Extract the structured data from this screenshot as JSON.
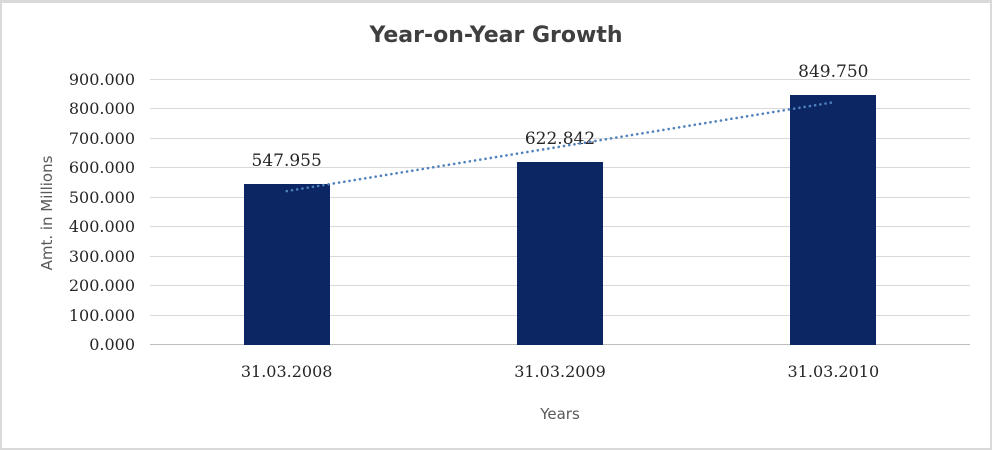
{
  "chart_data": {
    "type": "bar",
    "title": "Year-on-Year Growth",
    "xlabel": "Years",
    "ylabel": "Amt. in Millions",
    "categories": [
      "31.03.2008",
      "31.03.2009",
      "31.03.2010"
    ],
    "values": [
      547.955,
      622.842,
      849.75
    ],
    "value_labels": [
      "547.955",
      "622.842",
      "849.750"
    ],
    "ylim": [
      0,
      900
    ],
    "ytick_step": 100,
    "ytick_labels": [
      "0.000",
      "100.000",
      "200.000",
      "300.000",
      "400.000",
      "500.000",
      "600.000",
      "700.000",
      "800.000",
      "900.000"
    ],
    "grid": true,
    "legend": "none",
    "trendline": {
      "type": "linear",
      "style": "dotted",
      "color": "#4E81BD"
    },
    "colors": {
      "bar": "#0B2663",
      "trendline": "#4E81BD",
      "gridline": "#D9D9D9",
      "axis_line": "#BFBFBF",
      "chart_border": "#D9D9D9",
      "background": "#FFFFFF",
      "title_text": "#3F3F3F",
      "tick_text": "#262626",
      "axis_title_text": "#595959"
    }
  }
}
